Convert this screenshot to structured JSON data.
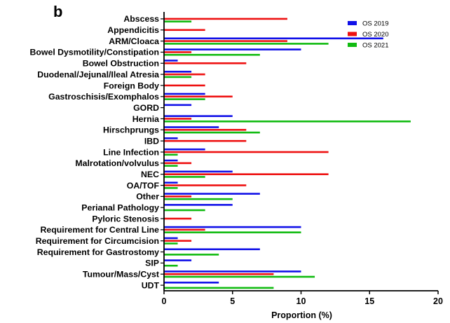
{
  "panel_label": "b",
  "chart_data": {
    "type": "bar",
    "orientation": "horizontal",
    "xlabel": "Proportion (%)",
    "ylabel": "",
    "xlim": [
      0,
      20
    ],
    "xticks": [
      "0",
      "5",
      "10",
      "15",
      "20"
    ],
    "grid": false,
    "legend_position": "top-right",
    "categories": [
      "Abscess",
      "Appendicitis",
      "ARM/Cloaca",
      "Bowel Dysmotility/Constipation",
      "Bowel Obstruction",
      "Duodenal/Jejunal/Ileal Atresia",
      "Foreign Body",
      "Gastroschisis/Exomphalos",
      "GORD",
      "Hernia",
      "Hirschprungs",
      "IBD",
      "Line Infection",
      "Malrotation/volvulus",
      "NEC",
      "OA/TOF",
      "Other",
      "Perianal Pathology",
      "Pyloric Stenosis",
      "Requirement for Central Line",
      "Requirement for Circumcision",
      "Requirement for Gastrostomy",
      "SIP",
      "Tumour/Mass/Cyst",
      "UDT"
    ],
    "series": [
      {
        "name": "OS 2019",
        "color": "#1010e8",
        "values": [
          0,
          0,
          16,
          10,
          1,
          2,
          0,
          3,
          2,
          5,
          4,
          1,
          3,
          1,
          5,
          1,
          7,
          5,
          0,
          10,
          1,
          7,
          2,
          10,
          4
        ]
      },
      {
        "name": "OS 2020",
        "color": "#ee1111",
        "values": [
          9,
          3,
          9,
          2,
          6,
          3,
          3,
          5,
          0,
          2,
          6,
          6,
          12,
          2,
          12,
          6,
          2,
          0,
          2,
          3,
          2,
          0,
          0,
          8,
          0
        ]
      },
      {
        "name": "OS 2021",
        "color": "#11bb11",
        "values": [
          2,
          0,
          12,
          7,
          0,
          2,
          0,
          3,
          0,
          18,
          7,
          0,
          1,
          1,
          3,
          1,
          5,
          3,
          0,
          10,
          1,
          4,
          1,
          11,
          8
        ]
      }
    ]
  }
}
